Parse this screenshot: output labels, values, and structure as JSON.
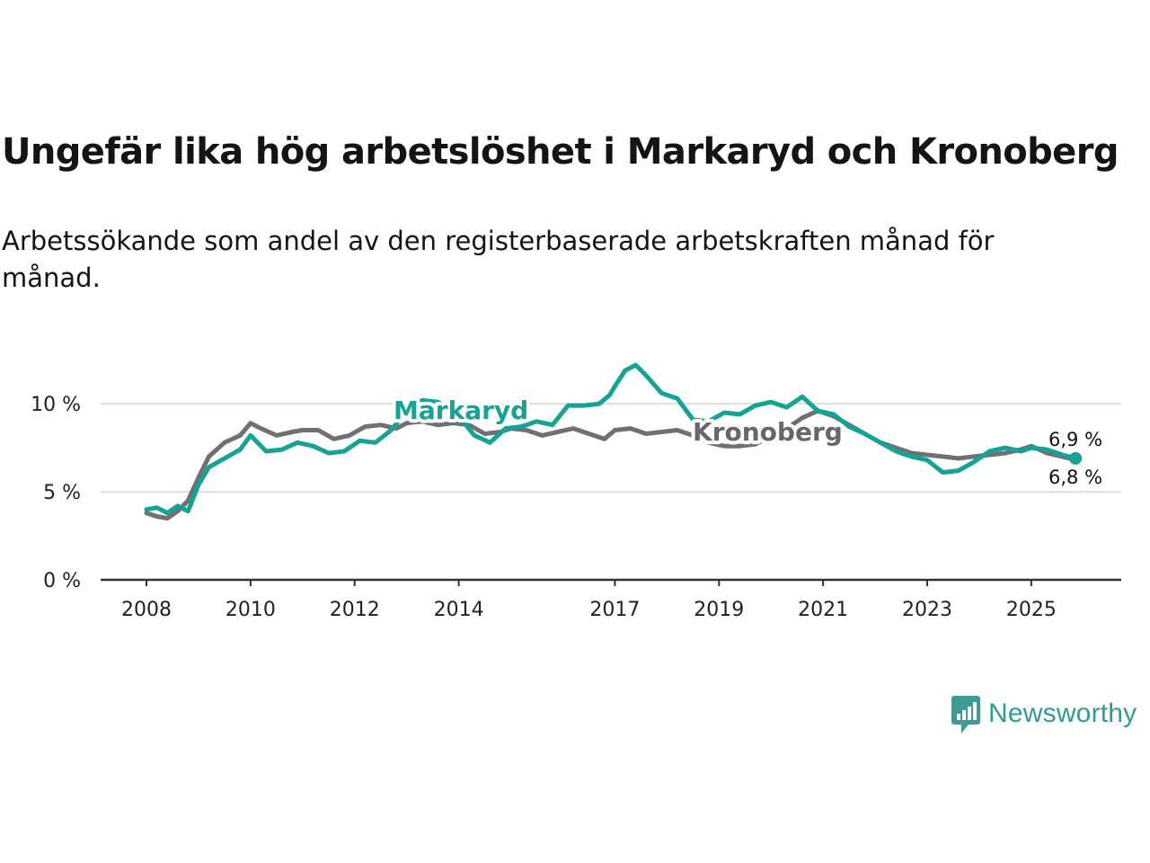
{
  "title": "Ungefär lika hög arbetslöshet i Markaryd och Kronoberg",
  "subtitle": "Arbetssökande som andel av den registerbaserade arbetskraften månad för månad.",
  "brand": {
    "name": "Newsworthy",
    "icon": "newsworthy-logo-icon"
  },
  "colors": {
    "markaryd": "#14a395",
    "kronoberg": "#706f74",
    "grid": "#dddddd",
    "axis": "#333333"
  },
  "chart_data": {
    "type": "line",
    "title": "Ungefär lika hög arbetslöshet i Markaryd och Kronoberg",
    "xlabel": "",
    "ylabel": "",
    "xlim": [
      2008,
      2025.9
    ],
    "ylim": [
      0,
      12
    ],
    "y_ticks": [
      0,
      5,
      10
    ],
    "y_tick_labels": [
      "0 %",
      "5 %",
      "10 %"
    ],
    "x_ticks": [
      2008,
      2010,
      2012,
      2014,
      2017,
      2019,
      2021,
      2023,
      2025
    ],
    "x_tick_labels": [
      "2008",
      "2010",
      "2012",
      "2014",
      "2017",
      "2019",
      "2021",
      "2023",
      "2025"
    ],
    "grid": true,
    "series": [
      {
        "name": "Kronoberg",
        "label": "Kronoberg",
        "color": "#706f74",
        "end_label": "6,8 %",
        "x": [
          2008.0,
          2008.2,
          2008.4,
          2008.6,
          2008.8,
          2009.0,
          2009.2,
          2009.5,
          2009.8,
          2010.0,
          2010.2,
          2010.5,
          2010.8,
          2011.0,
          2011.3,
          2011.6,
          2011.9,
          2012.2,
          2012.5,
          2012.8,
          2013.0,
          2013.3,
          2013.6,
          2013.9,
          2014.2,
          2014.5,
          2014.8,
          2015.0,
          2015.3,
          2015.6,
          2015.9,
          2016.2,
          2016.5,
          2016.8,
          2017.0,
          2017.3,
          2017.6,
          2017.9,
          2018.2,
          2018.5,
          2018.8,
          2019.1,
          2019.4,
          2019.7,
          2020.0,
          2020.3,
          2020.6,
          2020.9,
          2021.2,
          2021.5,
          2021.8,
          2022.1,
          2022.4,
          2022.7,
          2023.0,
          2023.3,
          2023.6,
          2023.9,
          2024.2,
          2024.5,
          2024.8,
          2025.0,
          2025.3,
          2025.6,
          2025.85
        ],
        "values": [
          3.8,
          3.6,
          3.5,
          3.9,
          4.5,
          5.8,
          7.0,
          7.8,
          8.2,
          8.9,
          8.6,
          8.2,
          8.4,
          8.5,
          8.5,
          8.0,
          8.2,
          8.7,
          8.8,
          8.6,
          8.9,
          9.0,
          8.8,
          8.9,
          8.8,
          8.3,
          8.4,
          8.6,
          8.5,
          8.2,
          8.4,
          8.6,
          8.3,
          8.0,
          8.5,
          8.6,
          8.3,
          8.4,
          8.5,
          8.2,
          7.8,
          7.6,
          7.6,
          7.7,
          8.2,
          8.6,
          9.2,
          9.6,
          9.3,
          8.8,
          8.3,
          7.8,
          7.5,
          7.2,
          7.1,
          7.0,
          6.9,
          7.0,
          7.1,
          7.2,
          7.4,
          7.6,
          7.2,
          7.0,
          6.8
        ]
      },
      {
        "name": "Markaryd",
        "label": "Markaryd",
        "color": "#14a395",
        "end_label": "6,9 %",
        "x": [
          2008.0,
          2008.2,
          2008.4,
          2008.6,
          2008.8,
          2009.0,
          2009.2,
          2009.5,
          2009.8,
          2010.0,
          2010.3,
          2010.6,
          2010.9,
          2011.2,
          2011.5,
          2011.8,
          2012.1,
          2012.4,
          2012.7,
          2013.0,
          2013.3,
          2013.6,
          2013.9,
          2014.0,
          2014.3,
          2014.6,
          2014.9,
          2015.2,
          2015.5,
          2015.8,
          2016.1,
          2016.4,
          2016.7,
          2016.9,
          2017.0,
          2017.2,
          2017.4,
          2017.6,
          2017.9,
          2018.2,
          2018.5,
          2018.8,
          2019.1,
          2019.4,
          2019.7,
          2020.0,
          2020.3,
          2020.6,
          2020.9,
          2021.2,
          2021.5,
          2021.8,
          2022.1,
          2022.4,
          2022.7,
          2023.0,
          2023.3,
          2023.6,
          2023.9,
          2024.2,
          2024.5,
          2024.8,
          2025.0,
          2025.3,
          2025.6,
          2025.85
        ],
        "values": [
          4.0,
          4.1,
          3.8,
          4.2,
          3.9,
          5.4,
          6.4,
          6.9,
          7.4,
          8.2,
          7.3,
          7.4,
          7.8,
          7.6,
          7.2,
          7.3,
          7.9,
          7.8,
          8.5,
          9.6,
          10.2,
          10.1,
          9.6,
          9.3,
          8.2,
          7.8,
          8.6,
          8.7,
          9.0,
          8.8,
          9.9,
          9.9,
          10.0,
          10.5,
          11.0,
          11.9,
          12.2,
          11.6,
          10.6,
          10.3,
          9.1,
          9.0,
          9.5,
          9.4,
          9.9,
          10.1,
          9.8,
          10.4,
          9.6,
          9.4,
          8.7,
          8.3,
          7.8,
          7.3,
          7.0,
          6.8,
          6.1,
          6.2,
          6.7,
          7.3,
          7.5,
          7.3,
          7.5,
          7.4,
          7.1,
          6.9
        ]
      }
    ]
  }
}
